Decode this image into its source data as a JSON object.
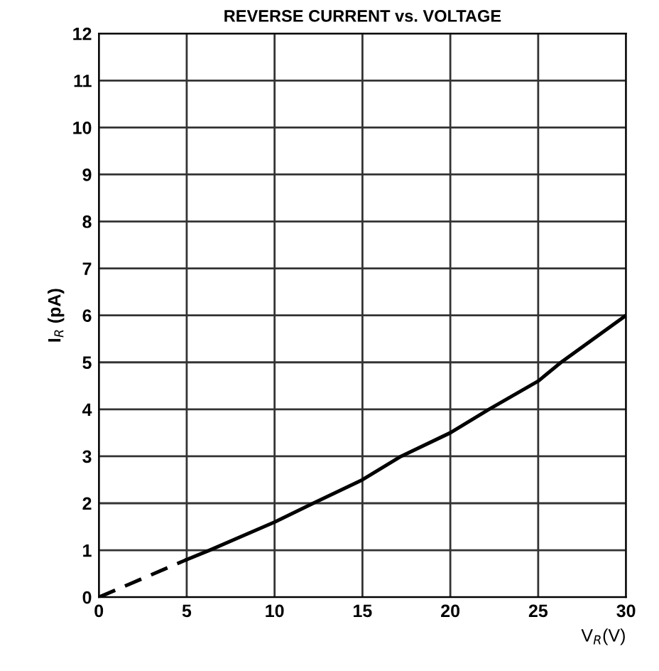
{
  "chart_data": {
    "type": "line",
    "title": "REVERSE CURRENT vs. VOLTAGE",
    "xlabel": "V$_{R}$(V)",
    "ylabel": "I$_{R}$ (pA)",
    "series": [
      {
        "x": [
          0,
          5
        ],
        "values": [
          0,
          0.8
        ],
        "color": "#000000",
        "line_style": "dashed"
      },
      {
        "x": [
          5,
          6.3,
          10,
          12.2,
          15,
          17.2,
          20,
          22.2,
          25,
          26.3,
          30
        ],
        "values": [
          0.8,
          1,
          1.6,
          2,
          2.5,
          3,
          3.5,
          4,
          4.6,
          5,
          6
        ],
        "color": "#000000",
        "line_style": "solid"
      }
    ],
    "xlim": [
      0,
      30
    ],
    "xticks": [
      0,
      5,
      10,
      15,
      20,
      25,
      30
    ],
    "ylim": [
      0,
      12
    ],
    "yticks": [
      0,
      1,
      2,
      3,
      4,
      5,
      6,
      7,
      8,
      9,
      10,
      11,
      12
    ],
    "grid": true,
    "legend": false
  }
}
